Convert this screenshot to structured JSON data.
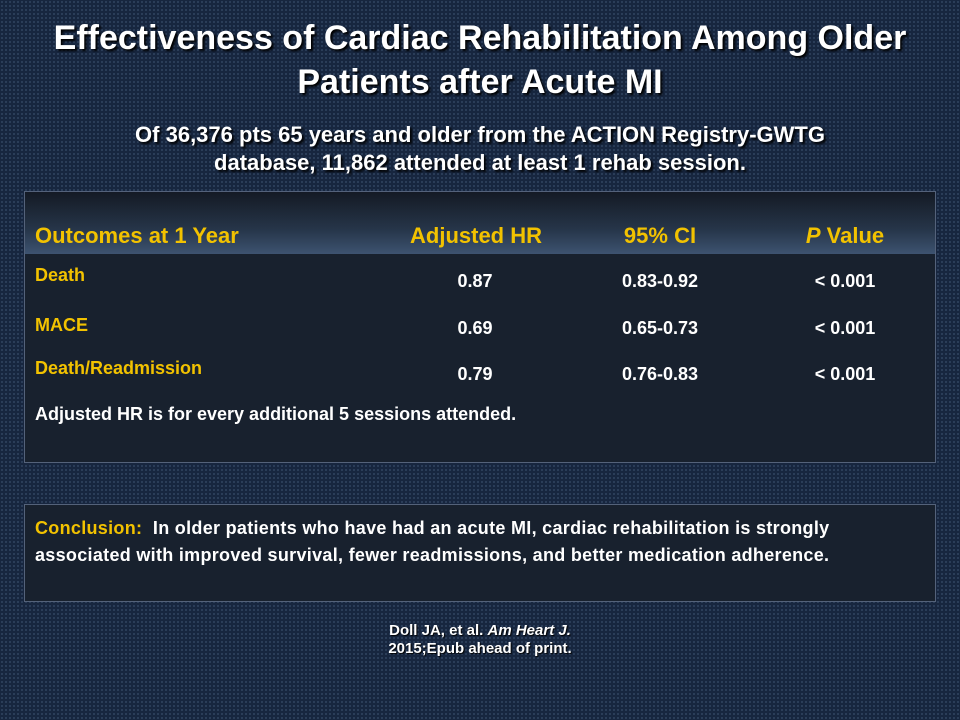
{
  "title_line1": "Effectiveness of Cardiac Rehabilitation Among Older",
  "title_line2": "Patients after Acute MI",
  "subtitle_line1": "Of 36,376 pts 65 years and older from the ACTION Registry-GWTG",
  "subtitle_line2": "database, 11,862 attended at least 1 rehab session.",
  "table": {
    "headers": {
      "outcome": "Outcomes at 1 Year",
      "hr": "Adjusted HR",
      "ci": "95% CI",
      "p_italic": "P",
      "p_rest": " Value"
    },
    "rows": [
      {
        "outcome": "Death",
        "hr": "0.87",
        "ci": "0.83-0.92",
        "p": "< 0.001"
      },
      {
        "outcome": "MACE",
        "hr": "0.69",
        "ci": "0.65-0.73",
        "p": "< 0.001"
      },
      {
        "outcome": "Death/Readmission",
        "hr": "0.79",
        "ci": "0.76-0.83",
        "p": "< 0.001"
      }
    ],
    "footnote": "Adjusted HR is for every additional 5 sessions attended."
  },
  "conclusion": {
    "label": "Conclusion:",
    "text": "In older patients who have had an acute MI, cardiac rehabilitation is strongly associated with improved survival, fewer readmissions, and better medication adherence."
  },
  "citation": {
    "authors": "Doll JA, et al.",
    "journal": "Am Heart J.",
    "line2": "2015;Epub ahead of print."
  },
  "colors": {
    "background": "#17263f",
    "accent_yellow": "#f2c200",
    "panel": "#18212e"
  }
}
